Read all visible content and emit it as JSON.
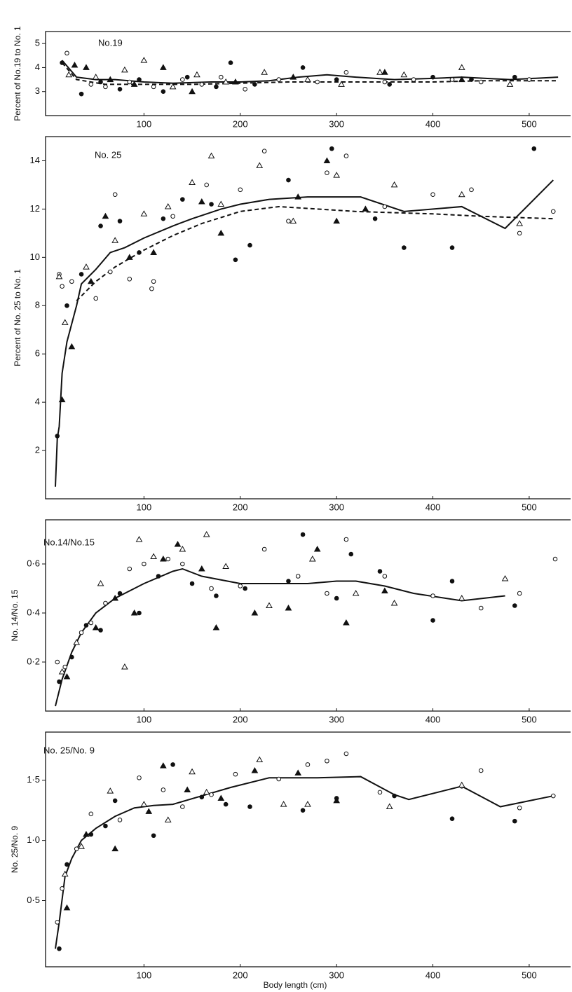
{
  "chart_data": [
    {
      "type": "scatter",
      "title": "No.19",
      "ylabel": "Percent of No.19 to No. 1",
      "xlim": [
        0,
        543
      ],
      "ylim": [
        2,
        5.5
      ],
      "xticks": [
        100,
        200,
        300,
        400,
        500
      ],
      "yticks": [
        3,
        4,
        5
      ],
      "series": [
        {
          "style": "line-solid",
          "x": [
            15,
            30,
            50,
            70,
            100,
            130,
            170,
            200,
            230,
            260,
            290,
            320,
            360,
            400,
            430,
            480,
            530
          ],
          "values": [
            4.3,
            3.6,
            3.5,
            3.5,
            3.4,
            3.35,
            3.4,
            3.4,
            3.45,
            3.6,
            3.7,
            3.6,
            3.5,
            3.55,
            3.6,
            3.5,
            3.6
          ]
        },
        {
          "style": "line-dashed",
          "x": [
            15,
            30,
            60,
            100,
            150,
            200,
            250,
            300,
            350,
            400,
            450,
            530
          ],
          "values": [
            4.2,
            3.5,
            3.3,
            3.3,
            3.3,
            3.35,
            3.4,
            3.4,
            3.4,
            3.4,
            3.45,
            3.45
          ]
        },
        {
          "style": "circle-open",
          "x": [
            20,
            45,
            60,
            85,
            110,
            140,
            160,
            180,
            205,
            240,
            280,
            310,
            350,
            380,
            420,
            450,
            500
          ],
          "values": [
            4.6,
            3.3,
            3.2,
            3.4,
            3.2,
            3.5,
            3.3,
            3.6,
            3.1,
            3.5,
            3.4,
            3.8,
            3.4,
            3.5,
            3.5,
            3.4,
            3.5
          ]
        },
        {
          "style": "circle-filled",
          "x": [
            15,
            35,
            55,
            75,
            95,
            120,
            145,
            175,
            190,
            215,
            265,
            300,
            355,
            400,
            440,
            485
          ],
          "values": [
            4.2,
            2.9,
            3.4,
            3.1,
            3.5,
            3.0,
            3.6,
            3.2,
            4.2,
            3.3,
            4.0,
            3.5,
            3.3,
            3.6,
            3.5,
            3.6
          ]
        },
        {
          "style": "triangle-open",
          "x": [
            22,
            50,
            80,
            100,
            130,
            155,
            185,
            225,
            270,
            305,
            345,
            370,
            430,
            480
          ],
          "values": [
            3.7,
            3.6,
            3.9,
            4.3,
            3.2,
            3.7,
            3.4,
            3.8,
            3.5,
            3.3,
            3.8,
            3.7,
            4.0,
            3.3
          ]
        },
        {
          "style": "triangle-filled",
          "x": [
            28,
            40,
            65,
            90,
            120,
            150,
            195,
            255,
            350,
            430
          ],
          "values": [
            4.1,
            4.0,
            3.5,
            3.3,
            4.0,
            3.0,
            3.4,
            3.6,
            3.8,
            3.5
          ]
        }
      ]
    },
    {
      "type": "scatter",
      "title": "No. 25",
      "ylabel": "Percent of No. 25 to No. 1",
      "xlim": [
        0,
        543
      ],
      "ylim": [
        0,
        15
      ],
      "xticks": [
        100,
        200,
        300,
        400,
        500
      ],
      "yticks": [
        2,
        4,
        6,
        8,
        10,
        12,
        14
      ],
      "series": [
        {
          "style": "line-solid",
          "x": [
            8,
            10,
            12,
            15,
            20,
            30,
            35,
            50,
            65,
            80,
            100,
            130,
            150,
            180,
            200,
            230,
            270,
            300,
            325,
            370,
            430,
            475,
            525
          ],
          "values": [
            0.5,
            2.5,
            3,
            5.2,
            6.5,
            8,
            8.9,
            9.5,
            10.2,
            10.4,
            10.8,
            11.3,
            11.6,
            12,
            12.2,
            12.4,
            12.5,
            12.5,
            12.5,
            11.9,
            12.1,
            11.2,
            13.2
          ]
        },
        {
          "style": "line-dashed",
          "x": [
            30,
            50,
            70,
            100,
            130,
            160,
            200,
            240,
            280,
            320,
            400,
            450,
            525
          ],
          "values": [
            8.2,
            9,
            9.6,
            10.3,
            10.9,
            11.4,
            11.9,
            12.1,
            12,
            11.9,
            11.8,
            11.7,
            11.6
          ]
        },
        {
          "style": "circle-open",
          "x": [
            12,
            15,
            25,
            50,
            65,
            70,
            85,
            108,
            110,
            130,
            165,
            200,
            225,
            250,
            290,
            310,
            350,
            400,
            440,
            490,
            525
          ],
          "values": [
            9.3,
            8.8,
            9.0,
            8.3,
            9.4,
            12.6,
            9.1,
            8.7,
            9.0,
            11.7,
            13.0,
            12.8,
            14.4,
            11.5,
            13.5,
            14.2,
            12.1,
            12.6,
            12.8,
            11.0,
            11.9
          ]
        },
        {
          "style": "circle-filled",
          "x": [
            10,
            20,
            35,
            55,
            75,
            95,
            120,
            140,
            170,
            195,
            210,
            250,
            295,
            340,
            370,
            420,
            505
          ],
          "values": [
            2.6,
            8.0,
            9.3,
            11.3,
            11.5,
            10.2,
            11.6,
            12.4,
            12.2,
            9.9,
            10.5,
            13.2,
            14.5,
            11.6,
            10.4,
            10.4,
            14.5
          ]
        },
        {
          "style": "triangle-open",
          "x": [
            12,
            18,
            40,
            70,
            100,
            125,
            150,
            170,
            180,
            220,
            255,
            300,
            360,
            430,
            490
          ],
          "values": [
            9.2,
            7.3,
            9.6,
            10.7,
            11.8,
            12.1,
            13.1,
            14.2,
            12.2,
            13.8,
            11.5,
            13.4,
            13.0,
            12.6,
            11.4
          ]
        },
        {
          "style": "triangle-filled",
          "x": [
            15,
            25,
            45,
            60,
            85,
            110,
            160,
            180,
            260,
            290,
            300,
            330
          ],
          "values": [
            4.1,
            6.3,
            9.0,
            11.7,
            10.0,
            10.2,
            12.3,
            11.0,
            12.5,
            14.0,
            11.5,
            12.0
          ]
        }
      ]
    },
    {
      "type": "scatter",
      "title": "No.14/No.15",
      "ylabel": "No. 14/No. 15",
      "xlim": [
        0,
        543
      ],
      "ylim": [
        0,
        0.78
      ],
      "xticks": [
        100,
        200,
        300,
        400,
        500
      ],
      "yticks": [
        {
          "value": 0.2,
          "label": "0·2"
        },
        {
          "value": 0.4,
          "label": "0·4"
        },
        {
          "value": 0.6,
          "label": "0·6"
        }
      ],
      "series": [
        {
          "style": "line-solid",
          "x": [
            8,
            15,
            25,
            35,
            50,
            70,
            100,
            130,
            140,
            160,
            200,
            230,
            270,
            300,
            320,
            350,
            380,
            430,
            475
          ],
          "values": [
            0.02,
            0.13,
            0.24,
            0.32,
            0.4,
            0.46,
            0.52,
            0.57,
            0.58,
            0.55,
            0.52,
            0.52,
            0.52,
            0.53,
            0.53,
            0.51,
            0.48,
            0.45,
            0.47
          ]
        },
        {
          "style": "circle-open",
          "x": [
            10,
            18,
            35,
            45,
            60,
            85,
            100,
            125,
            140,
            170,
            200,
            225,
            260,
            290,
            310,
            350,
            400,
            450,
            490,
            527
          ],
          "values": [
            0.2,
            0.18,
            0.32,
            0.36,
            0.44,
            0.58,
            0.6,
            0.62,
            0.6,
            0.5,
            0.51,
            0.66,
            0.55,
            0.48,
            0.7,
            0.55,
            0.47,
            0.42,
            0.48,
            0.62
          ]
        },
        {
          "style": "circle-filled",
          "x": [
            12,
            25,
            40,
            55,
            75,
            95,
            115,
            150,
            175,
            205,
            250,
            265,
            300,
            315,
            345,
            400,
            420,
            485
          ],
          "values": [
            0.12,
            0.22,
            0.35,
            0.33,
            0.48,
            0.4,
            0.55,
            0.52,
            0.47,
            0.5,
            0.53,
            0.72,
            0.46,
            0.64,
            0.57,
            0.37,
            0.53,
            0.43
          ]
        },
        {
          "style": "triangle-open",
          "x": [
            15,
            30,
            55,
            80,
            95,
            110,
            140,
            165,
            185,
            230,
            275,
            320,
            360,
            430,
            475
          ],
          "values": [
            0.16,
            0.28,
            0.52,
            0.18,
            0.7,
            0.63,
            0.66,
            0.72,
            0.59,
            0.43,
            0.62,
            0.48,
            0.44,
            0.46,
            0.54
          ]
        },
        {
          "style": "triangle-filled",
          "x": [
            20,
            50,
            70,
            90,
            120,
            135,
            160,
            175,
            215,
            250,
            280,
            310,
            350
          ],
          "values": [
            0.14,
            0.34,
            0.46,
            0.4,
            0.62,
            0.68,
            0.58,
            0.34,
            0.4,
            0.42,
            0.66,
            0.36,
            0.49
          ]
        }
      ]
    },
    {
      "type": "scatter",
      "title": "No. 25/No. 9",
      "ylabel": "No. 25/No. 9",
      "xlabel": "Body length (cm)",
      "xlim": [
        0,
        543
      ],
      "ylim": [
        -0.05,
        1.9
      ],
      "xticks": [
        100,
        200,
        300,
        400,
        500
      ],
      "yticks": [
        {
          "value": 0.5,
          "label": "0·5"
        },
        {
          "value": 1.0,
          "label": "1·0"
        },
        {
          "value": 1.5,
          "label": "1·5"
        }
      ],
      "series": [
        {
          "style": "line-solid",
          "x": [
            8,
            12,
            18,
            25,
            35,
            50,
            70,
            90,
            110,
            130,
            160,
            190,
            230,
            280,
            325,
            360,
            375,
            430,
            470,
            525
          ],
          "values": [
            0.1,
            0.32,
            0.7,
            0.85,
            1.0,
            1.1,
            1.2,
            1.27,
            1.29,
            1.3,
            1.37,
            1.44,
            1.52,
            1.52,
            1.53,
            1.38,
            1.34,
            1.45,
            1.28,
            1.37
          ]
        },
        {
          "style": "circle-open",
          "x": [
            10,
            15,
            30,
            45,
            75,
            95,
            120,
            140,
            170,
            195,
            240,
            270,
            290,
            310,
            345,
            430,
            450,
            490,
            525
          ],
          "values": [
            0.32,
            0.6,
            0.93,
            1.22,
            1.17,
            1.52,
            1.42,
            1.28,
            1.38,
            1.55,
            1.51,
            1.63,
            1.66,
            1.72,
            1.4,
            1.45,
            1.58,
            1.27,
            1.37
          ]
        },
        {
          "style": "circle-filled",
          "x": [
            12,
            20,
            45,
            60,
            70,
            110,
            130,
            160,
            185,
            210,
            265,
            300,
            360,
            420,
            485
          ],
          "values": [
            0.1,
            0.8,
            1.05,
            1.12,
            1.33,
            1.04,
            1.63,
            1.36,
            1.3,
            1.28,
            1.25,
            1.35,
            1.37,
            1.18,
            1.16
          ]
        },
        {
          "style": "triangle-open",
          "x": [
            18,
            35,
            65,
            100,
            125,
            150,
            165,
            220,
            245,
            270,
            355,
            430
          ],
          "values": [
            0.72,
            0.95,
            1.41,
            1.3,
            1.17,
            1.57,
            1.4,
            1.67,
            1.3,
            1.3,
            1.28,
            1.46
          ]
        },
        {
          "style": "triangle-filled",
          "x": [
            20,
            40,
            70,
            105,
            120,
            145,
            180,
            215,
            260,
            300
          ],
          "values": [
            0.44,
            1.05,
            0.93,
            1.24,
            1.62,
            1.42,
            1.35,
            1.58,
            1.56,
            1.33
          ]
        }
      ]
    }
  ]
}
